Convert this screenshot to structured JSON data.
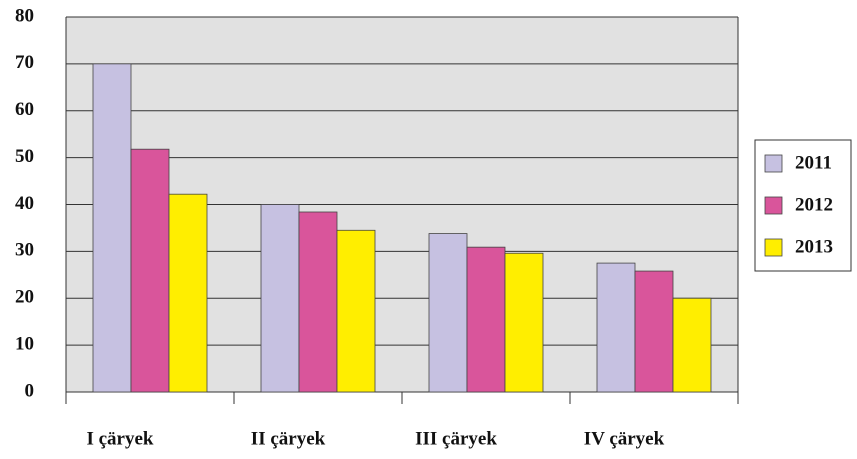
{
  "chart_data": {
    "type": "bar",
    "categories": [
      "I çäryek",
      "II çäryek",
      "III çäryek",
      "IV çäryek"
    ],
    "series": [
      {
        "name": "2011",
        "color": "#c6c1e1",
        "values": [
          70,
          40,
          33.8,
          27.5
        ]
      },
      {
        "name": "2012",
        "color": "#d9559b",
        "values": [
          51.8,
          38.4,
          30.9,
          25.8
        ]
      },
      {
        "name": "2013",
        "color": "#ffee00",
        "values": [
          42.2,
          34.5,
          29.6,
          20
        ]
      }
    ],
    "ylim": [
      0,
      80
    ],
    "yticks": [
      0,
      10,
      20,
      30,
      40,
      50,
      60,
      70,
      80
    ],
    "grid": true,
    "legend": "right"
  }
}
